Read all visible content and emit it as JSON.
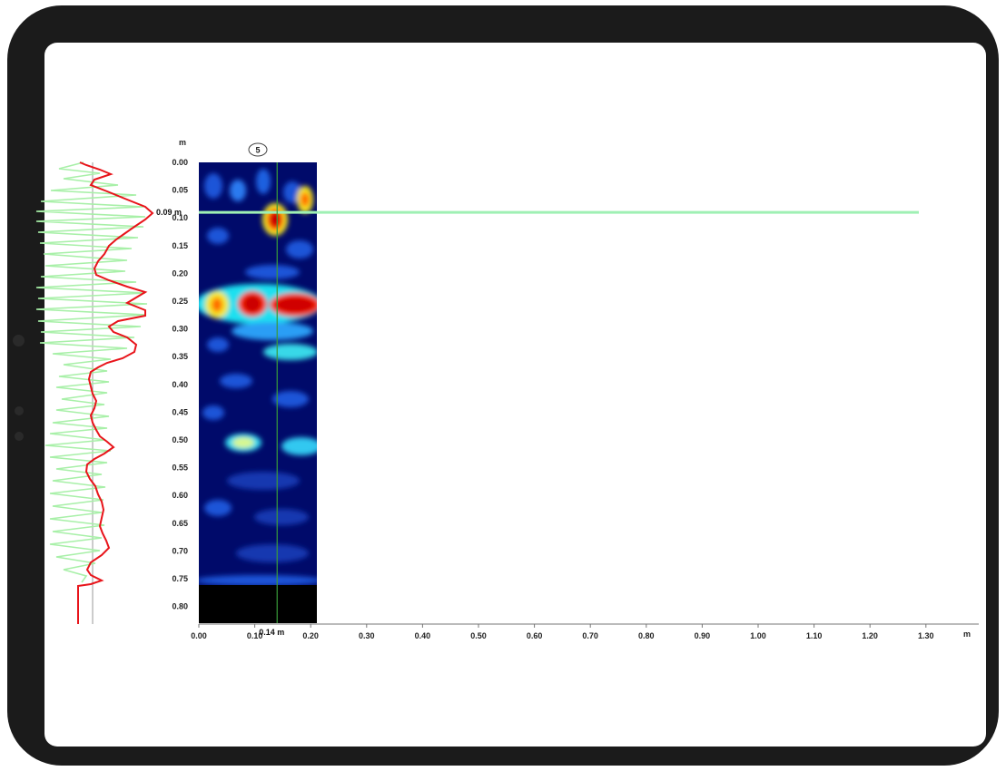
{
  "scan": {
    "number_badge": "5",
    "depth_unit": "m",
    "distance_unit": "m",
    "depth_ticks": [
      "0.00",
      "0.05",
      "0.10",
      "0.15",
      "0.20",
      "0.25",
      "0.30",
      "0.35",
      "0.40",
      "0.45",
      "0.50",
      "0.55",
      "0.60",
      "0.65",
      "0.70",
      "0.75",
      "0.80"
    ],
    "distance_ticks": [
      "0.00",
      "0.10",
      "0.20",
      "0.30",
      "0.40",
      "0.50",
      "0.60",
      "0.70",
      "0.80",
      "0.90",
      "1.00",
      "1.10",
      "1.20",
      "1.30"
    ],
    "depth_cursor_label": "0.09 m",
    "distance_cursor_label": "0.14 m",
    "depth_cursor_value": 0.09,
    "distance_cursor_value": 0.14
  },
  "colors": {
    "screen_bg": "#ffffff",
    "bezel": "#1b1b1b",
    "trace_green": "#a8f0a8",
    "trace_red": "#e8141a",
    "cursor_line": "#9ff0b4"
  }
}
